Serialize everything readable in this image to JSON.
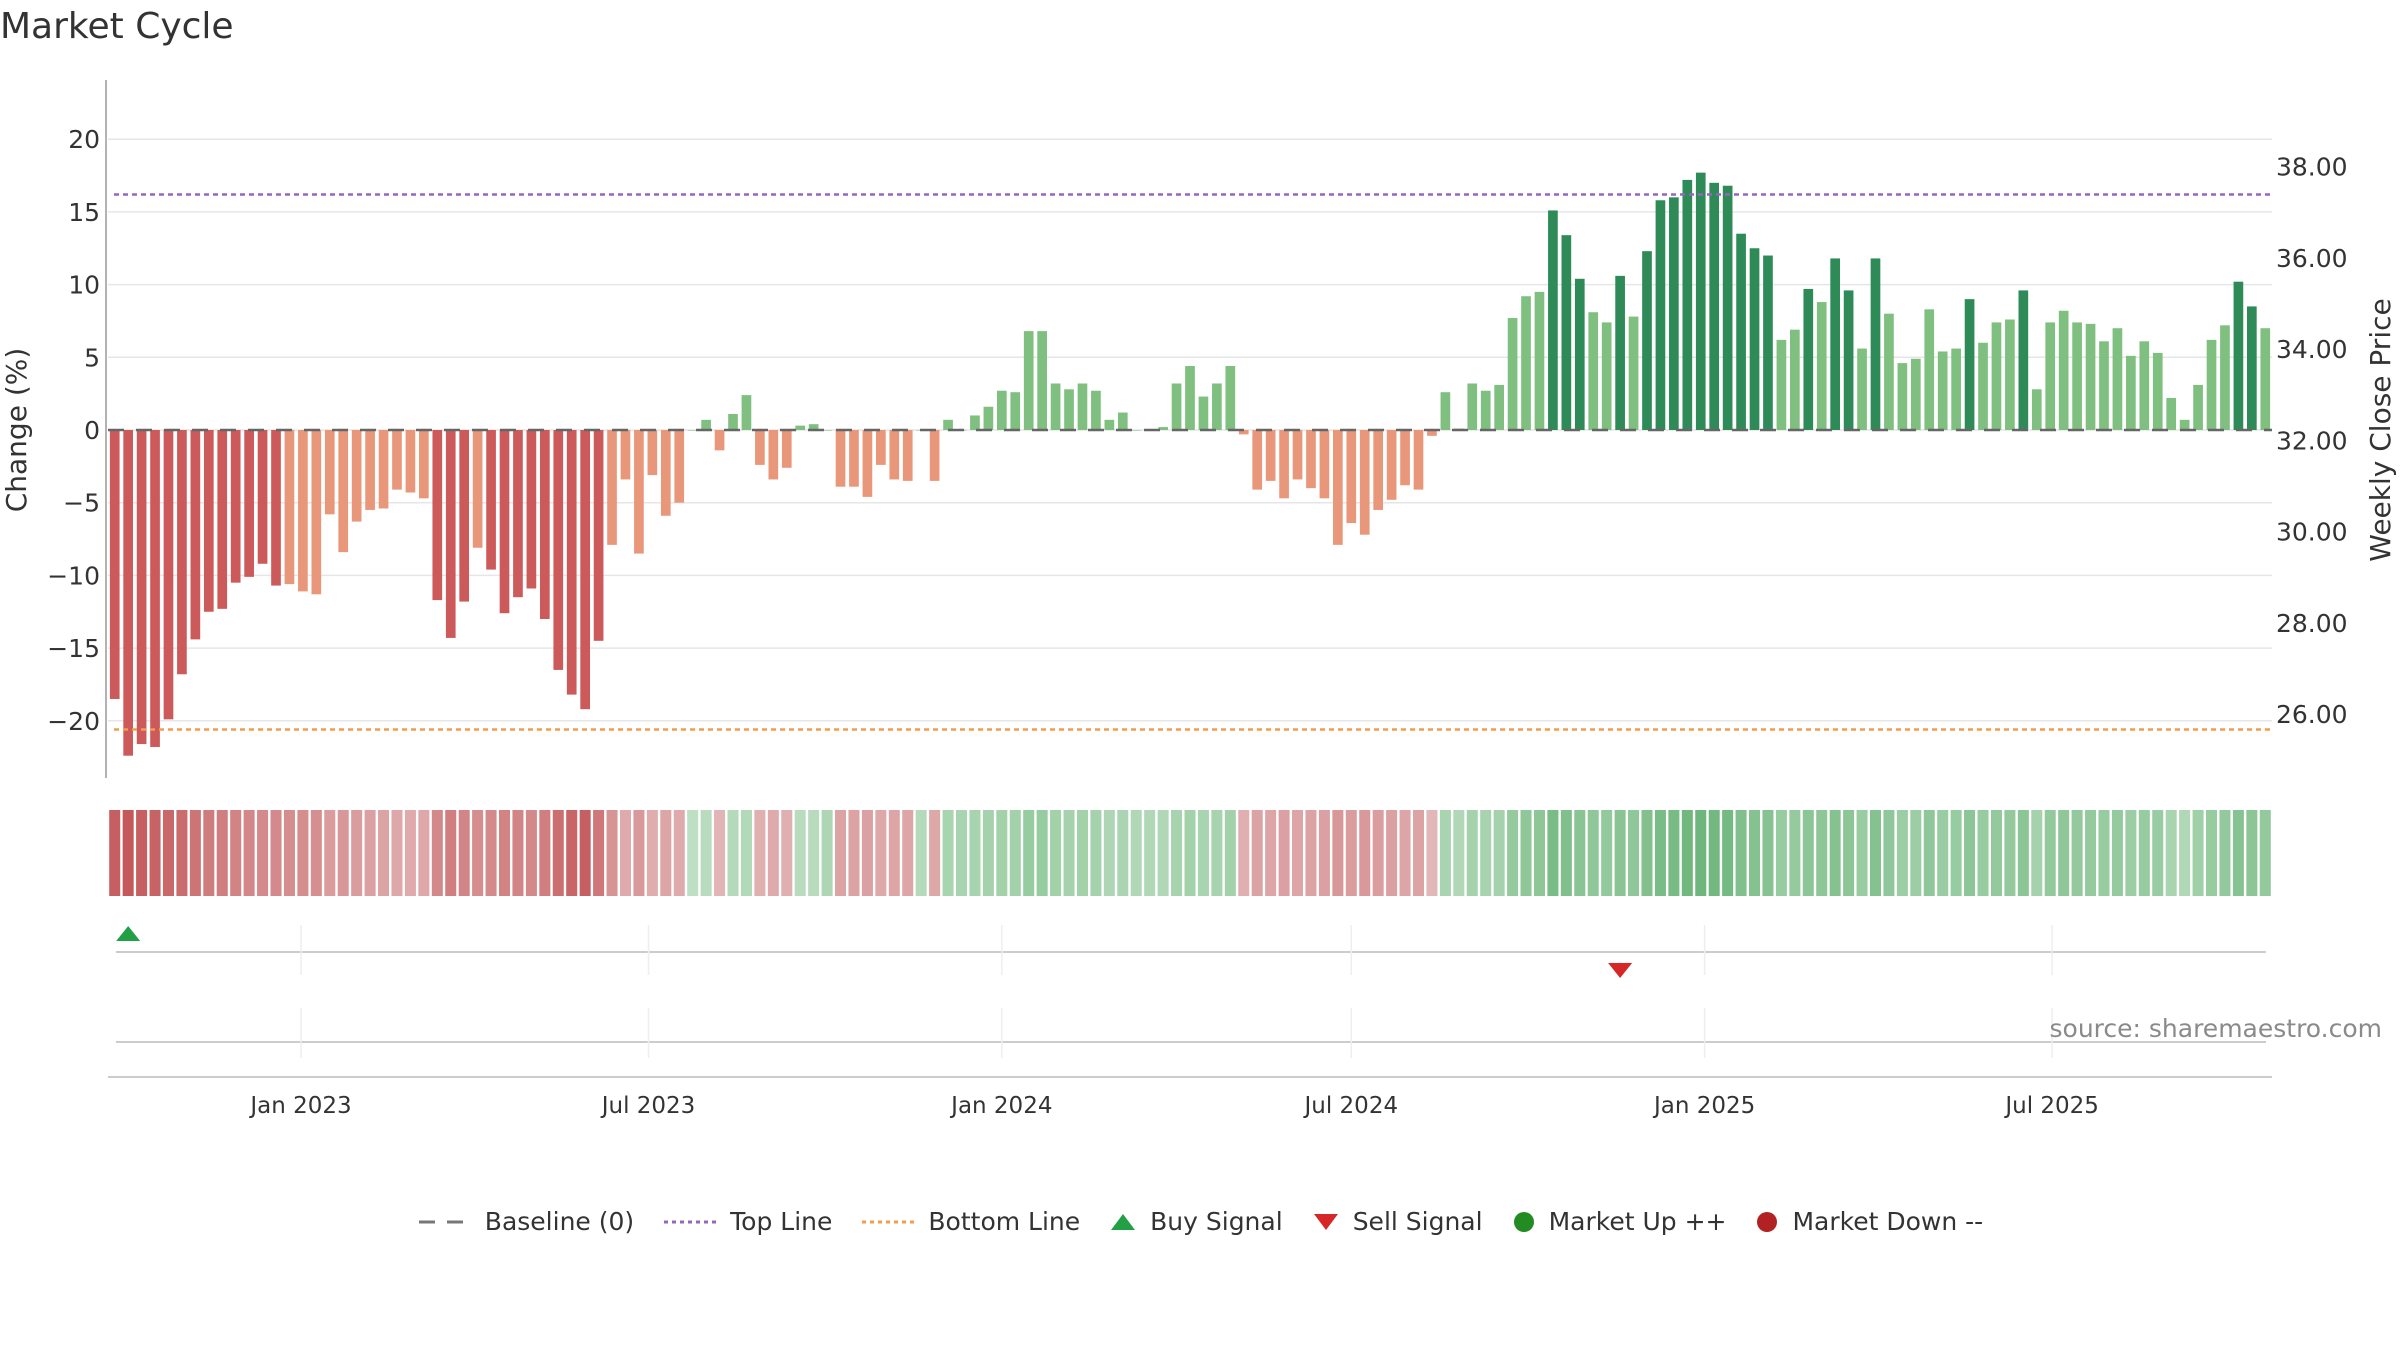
{
  "title": "Market Cycle",
  "source": "source: sharemaestro.com",
  "legend": {
    "baseline": "Baseline (0)",
    "top_line": "Top Line",
    "bottom_line": "Bottom Line",
    "buy": "Buy Signal",
    "sell": "Sell Signal",
    "up": "Market Up ++",
    "down": "Market Down --"
  },
  "colors": {
    "strong_down": "#cc5a5a",
    "weak_down": "#e9977a",
    "strong_up": "#2e8b57",
    "weak_up": "#7fbf7f",
    "top_line": "#9467bd",
    "bottom_line": "#f39c4f",
    "buy": "#22a045",
    "sell": "#d62728",
    "up_marker": "#228b22",
    "down_marker": "#b22222"
  },
  "chart_data": {
    "type": "bar",
    "ylabel": "Change (%)",
    "ylabel_right": "Weekly Close Price",
    "ylim": [
      -24,
      24
    ],
    "y_ticks": [
      -20,
      -15,
      -10,
      -5,
      0,
      5,
      10,
      15,
      20
    ],
    "y2lim": [
      24.6,
      39.9
    ],
    "y2_ticks": [
      "26.00",
      "28.00",
      "30.00",
      "32.00",
      "34.00",
      "36.00",
      "38.00"
    ],
    "top_line": 16.2,
    "bottom_line": -20.6,
    "x_ticks": [
      "Jan 2023",
      "Jul 2023",
      "Jan 2024",
      "Jul 2024",
      "Jan 2025",
      "Jul 2025"
    ],
    "start_date": "2022-09-26",
    "values": [
      -18.5,
      -22.4,
      -21.6,
      -21.8,
      -19.9,
      -16.8,
      -14.4,
      -12.5,
      -12.3,
      -10.5,
      -10.1,
      -9.2,
      -10.7,
      -10.6,
      -11.1,
      -11.3,
      -5.8,
      -8.4,
      -6.3,
      -5.5,
      -5.4,
      -4.1,
      -4.3,
      -4.7,
      -11.7,
      -14.3,
      -11.8,
      -8.1,
      -9.6,
      -12.6,
      -11.5,
      -10.9,
      -13.0,
      -16.5,
      -18.2,
      -19.2,
      -14.5,
      -7.9,
      -3.4,
      -8.5,
      -3.1,
      -5.9,
      -5.0,
      0.0,
      0.7,
      -1.4,
      1.1,
      2.4,
      -2.4,
      -3.4,
      -2.6,
      0.3,
      0.4,
      0.0,
      -3.9,
      -3.9,
      -4.6,
      -2.4,
      -3.4,
      -3.5,
      0.0,
      -3.5,
      0.7,
      0.0,
      1.0,
      1.6,
      2.7,
      2.6,
      6.8,
      6.8,
      3.2,
      2.8,
      3.2,
      2.7,
      0.7,
      1.2,
      0.0,
      0.0,
      0.2,
      3.2,
      4.4,
      2.3,
      3.2,
      4.4,
      -0.3,
      -4.1,
      -3.5,
      -4.7,
      -3.4,
      -4.0,
      -4.7,
      -7.9,
      -6.4,
      -7.2,
      -5.5,
      -4.8,
      -3.8,
      -4.1,
      -0.4,
      2.6,
      0.1,
      3.2,
      2.7,
      3.1,
      7.7,
      9.2,
      9.5,
      15.1,
      13.4,
      10.4,
      8.1,
      7.4,
      10.6,
      7.8,
      12.3,
      15.8,
      16.0,
      17.2,
      17.7,
      17.0,
      16.8,
      13.5,
      12.5,
      12.0,
      6.2,
      6.9,
      9.7,
      8.8,
      11.8,
      9.6,
      5.6,
      11.8,
      8.0,
      4.6,
      4.9,
      8.3,
      5.4,
      5.6,
      9.0,
      6.0,
      7.4,
      7.6,
      9.6,
      2.8,
      7.4,
      8.2,
      7.4,
      7.3,
      6.1,
      7.0,
      5.1,
      6.1,
      5.3,
      2.2,
      0.7,
      3.1,
      6.2,
      7.2,
      10.2,
      8.5,
      7.0
    ],
    "strength": [
      0.95,
      1.0,
      0.95,
      0.92,
      0.88,
      0.85,
      0.78,
      0.72,
      0.7,
      0.66,
      0.63,
      0.6,
      0.6,
      0.58,
      0.58,
      0.56,
      0.46,
      0.5,
      0.45,
      0.42,
      0.4,
      0.36,
      0.34,
      0.36,
      0.62,
      0.7,
      0.64,
      0.58,
      0.6,
      0.66,
      0.64,
      0.62,
      0.7,
      0.82,
      0.9,
      0.95,
      0.75,
      0.52,
      0.34,
      0.48,
      0.32,
      0.38,
      0.34,
      0.16,
      0.2,
      0.26,
      0.24,
      0.26,
      0.3,
      0.34,
      0.3,
      0.2,
      0.22,
      0.3,
      0.4,
      0.4,
      0.42,
      0.36,
      0.38,
      0.38,
      0.24,
      0.36,
      0.34,
      0.34,
      0.36,
      0.38,
      0.4,
      0.4,
      0.5,
      0.5,
      0.4,
      0.38,
      0.4,
      0.38,
      0.3,
      0.32,
      0.28,
      0.28,
      0.28,
      0.36,
      0.4,
      0.34,
      0.36,
      0.4,
      0.3,
      0.4,
      0.38,
      0.42,
      0.38,
      0.4,
      0.42,
      0.5,
      0.46,
      0.48,
      0.44,
      0.42,
      0.38,
      0.4,
      0.24,
      0.34,
      0.28,
      0.38,
      0.36,
      0.38,
      0.52,
      0.56,
      0.58,
      0.76,
      0.7,
      0.62,
      0.56,
      0.54,
      0.62,
      0.56,
      0.68,
      0.76,
      0.78,
      0.84,
      0.86,
      0.82,
      0.8,
      0.7,
      0.66,
      0.64,
      0.5,
      0.52,
      0.6,
      0.58,
      0.66,
      0.6,
      0.48,
      0.66,
      0.56,
      0.46,
      0.46,
      0.56,
      0.48,
      0.5,
      0.6,
      0.5,
      0.54,
      0.54,
      0.6,
      0.38,
      0.54,
      0.56,
      0.54,
      0.52,
      0.5,
      0.52,
      0.46,
      0.5,
      0.48,
      0.34,
      0.28,
      0.42,
      0.5,
      0.54,
      0.64,
      0.6,
      0.54
    ],
    "signals": [
      {
        "type": "buy",
        "date": "2022-10-03"
      },
      {
        "type": "sell",
        "date": "2024-11-18"
      }
    ],
    "grid": true
  }
}
